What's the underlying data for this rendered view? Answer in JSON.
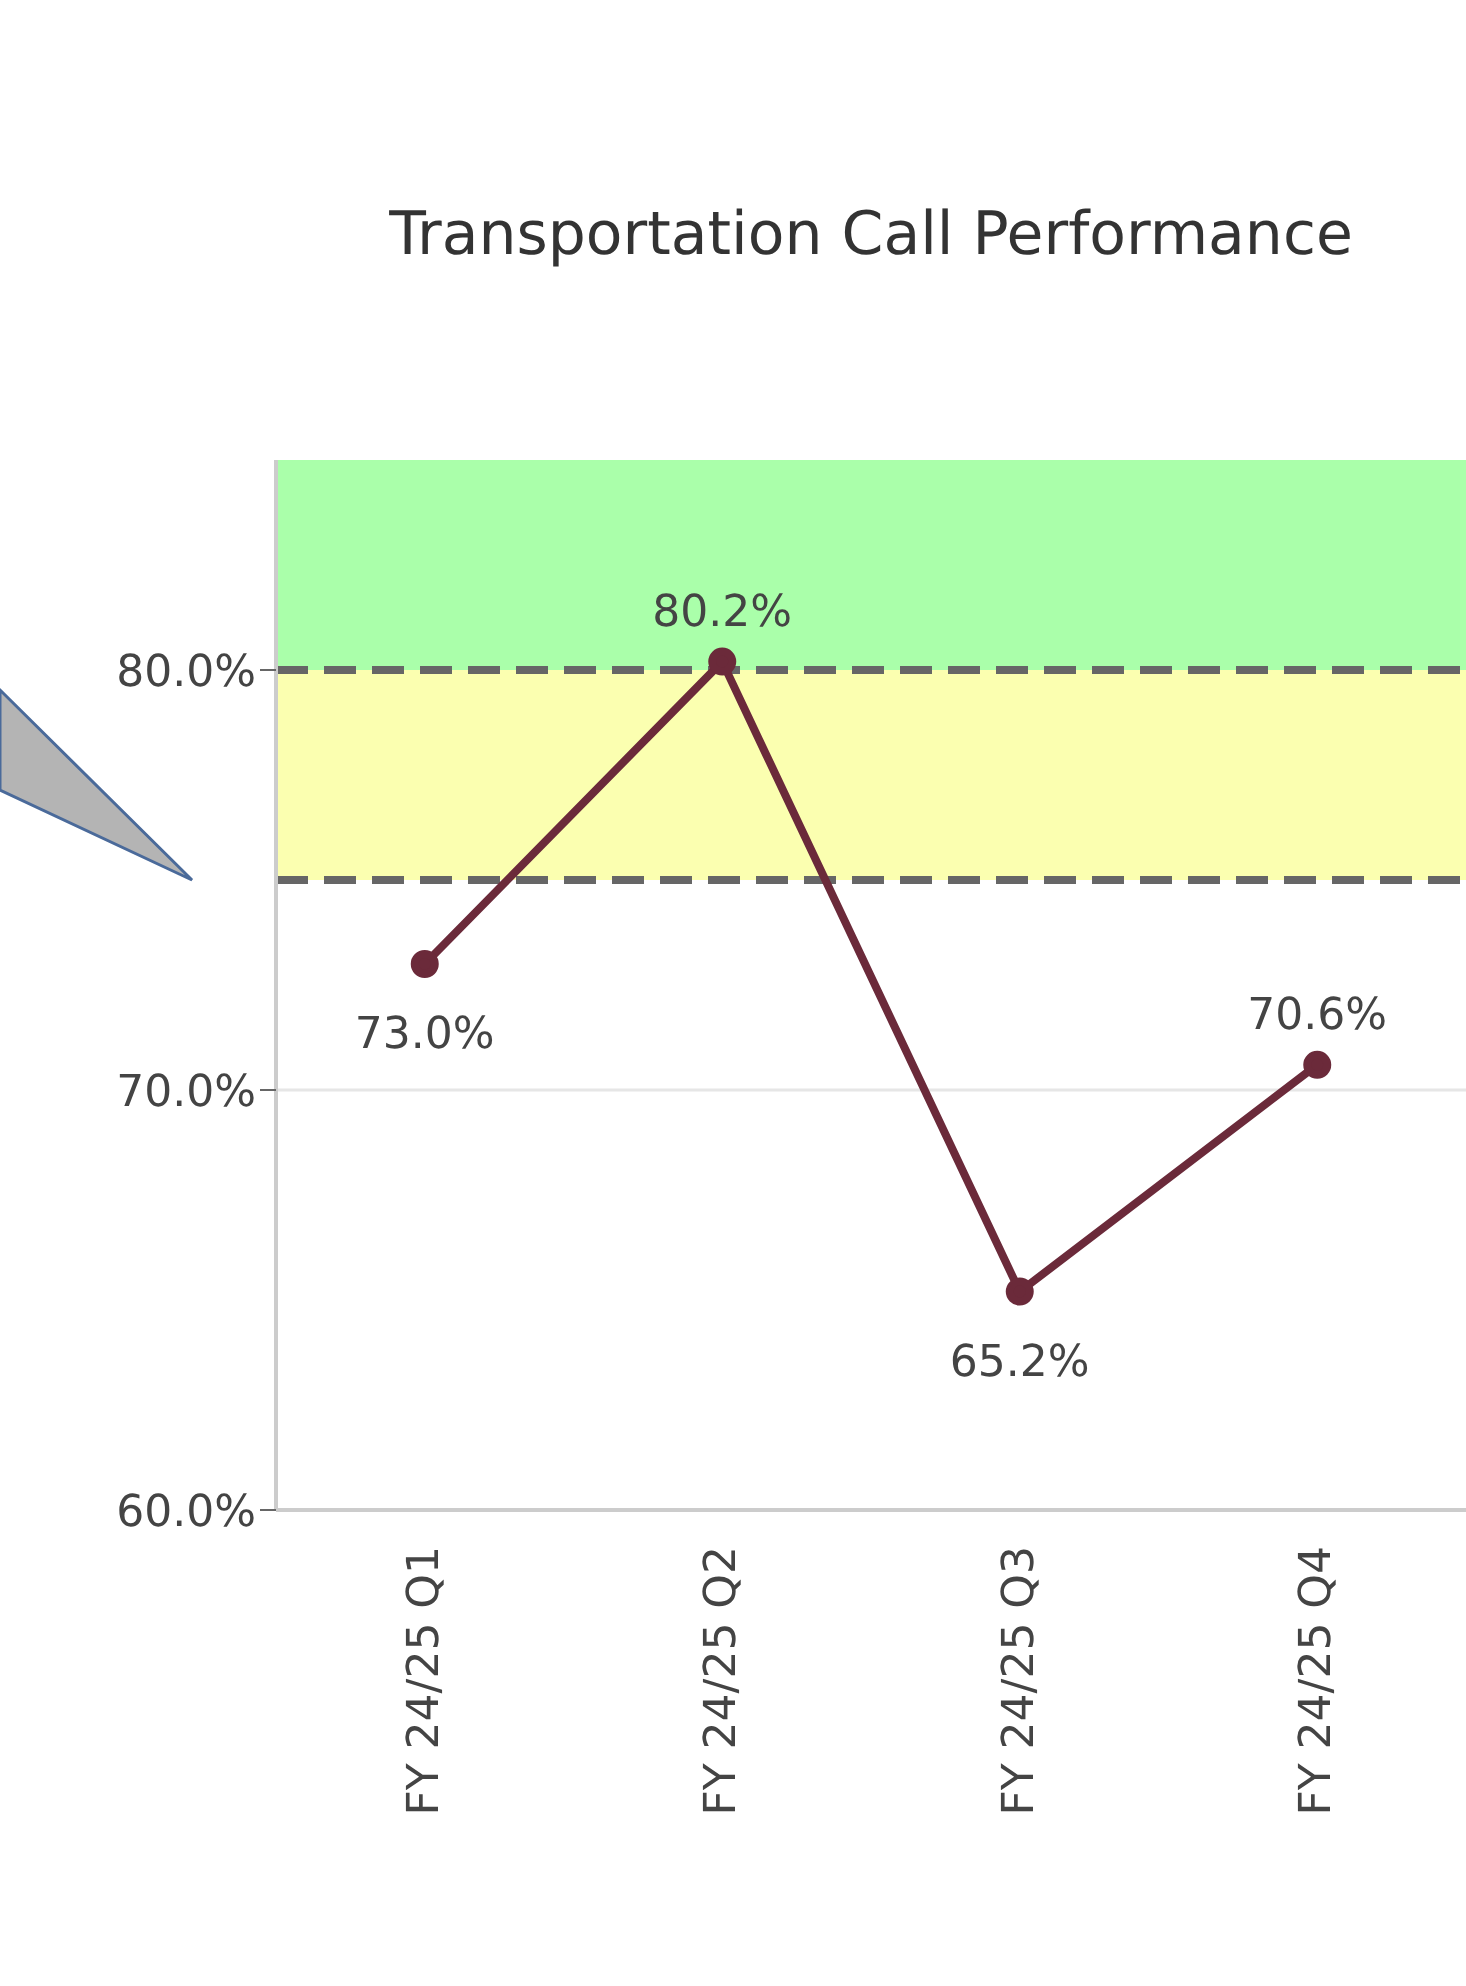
{
  "chart_data": {
    "type": "line",
    "title": "Transportation Call Performance",
    "categories": [
      "FY 24/25 Q1",
      "FY 24/25 Q2",
      "FY 24/25 Q3",
      "FY 24/25 Q4"
    ],
    "series": [
      {
        "color": "#6b2a3a",
        "values": [
          73.0,
          80.2,
          65.2,
          70.6
        ]
      }
    ],
    "value_labels": [
      "73.0%",
      "80.2%",
      "65.2%",
      "70.6%"
    ],
    "ylim": [
      60,
      85
    ],
    "yticks": [
      {
        "value": 60,
        "label": "60.0%"
      },
      {
        "value": 70,
        "label": "70.0%"
      },
      {
        "value": 80,
        "label": "80.0%"
      }
    ],
    "bands": [
      {
        "axis": "y",
        "from": 80,
        "to": 85,
        "color": "#aaffaa"
      },
      {
        "axis": "y",
        "from": 75,
        "to": 80,
        "color": "#fbffb0"
      }
    ],
    "ref_lines": [
      {
        "axis": "y",
        "value": 80,
        "color": "#666666",
        "line_style": "dashed"
      },
      {
        "axis": "y",
        "value": 75,
        "color": "#666666",
        "line_style": "dashed"
      },
      {
        "axis": "y",
        "value": 70,
        "color": "#e6e6e6",
        "line_style": "solid"
      }
    ],
    "marker": "circle",
    "legend": false
  }
}
